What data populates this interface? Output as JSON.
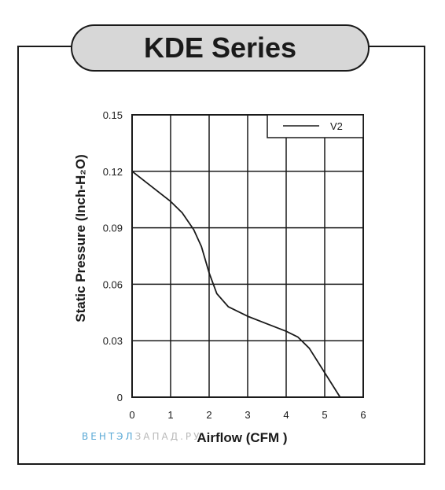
{
  "header": {
    "title": "KDE Series"
  },
  "watermark": {
    "part1": "ВЕНТЭЛ",
    "part2": "ЗАПАД.РУ"
  },
  "chart_data": {
    "type": "line",
    "title": "",
    "xlabel": "Airflow (CFM )",
    "ylabel": "Static Pressure (Inch-H₂O)",
    "xlim": [
      0,
      6
    ],
    "ylim": [
      0,
      0.15
    ],
    "x_ticks": [
      "0",
      "1",
      "2",
      "3",
      "4",
      "5",
      "6"
    ],
    "y_ticks": [
      "0",
      "0.03",
      "0.06",
      "0.09",
      "0.12",
      "0.15"
    ],
    "grid": true,
    "legend": "top-right",
    "series": [
      {
        "name": "V2",
        "color": "#1a1a1a",
        "x": [
          0,
          0.5,
          1.0,
          1.3,
          1.6,
          1.8,
          2.0,
          2.2,
          2.5,
          3.0,
          3.5,
          4.0,
          4.3,
          4.6,
          5.0,
          5.4
        ],
        "y": [
          0.12,
          0.112,
          0.104,
          0.098,
          0.089,
          0.08,
          0.066,
          0.055,
          0.048,
          0.043,
          0.039,
          0.035,
          0.032,
          0.026,
          0.013,
          0
        ]
      }
    ]
  }
}
